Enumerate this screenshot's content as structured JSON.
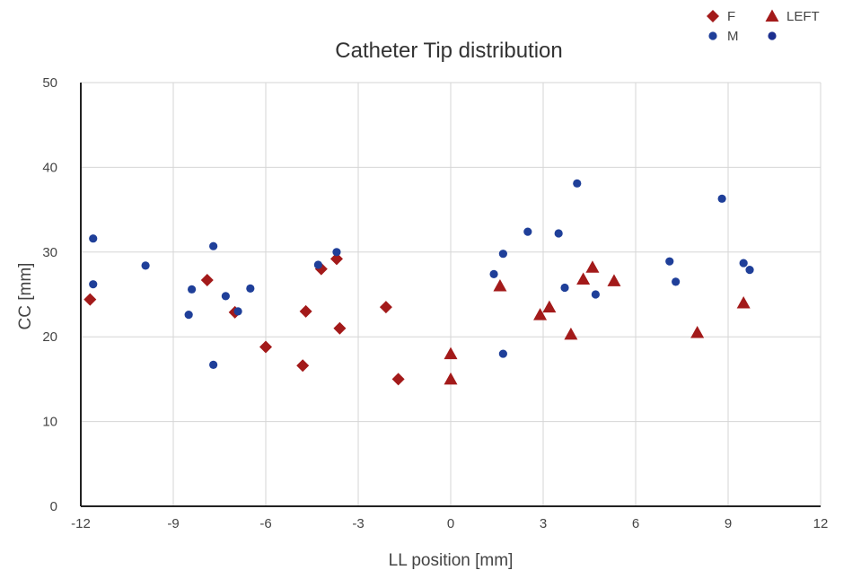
{
  "chart_data": {
    "type": "scatter",
    "title": "Catheter Tip distribution",
    "xlabel": "LL position [mm]",
    "ylabel": "CC [mm]",
    "xlim": [
      -12,
      12
    ],
    "ylim": [
      0,
      50
    ],
    "xticks": [
      -12,
      -9,
      -6,
      -3,
      0,
      3,
      6,
      9,
      12
    ],
    "yticks": [
      0,
      10,
      20,
      30,
      40,
      50
    ],
    "grid": true,
    "legend_position": "top-right",
    "legend": [
      {
        "label": "F",
        "marker": "diamond",
        "color": "#a31a1a"
      },
      {
        "label": "LEFT",
        "marker": "triangle",
        "color": "#a31a1a"
      },
      {
        "label": "M",
        "marker": "circle",
        "color": "#1f3f99"
      },
      {
        "label": "",
        "marker": "circle",
        "color": "#1c2f8f"
      }
    ],
    "series": [
      {
        "marker": "diamond",
        "color": "#a31a1a",
        "points": [
          [
            -11.7,
            24.4
          ],
          [
            -7.9,
            26.7
          ],
          [
            -7.0,
            22.9
          ],
          [
            -6.0,
            18.8
          ],
          [
            -4.8,
            16.6
          ],
          [
            -4.7,
            23.0
          ],
          [
            -4.2,
            28.0
          ],
          [
            -3.7,
            29.2
          ],
          [
            -3.6,
            21.0
          ],
          [
            -2.1,
            23.5
          ],
          [
            -1.7,
            15.0
          ]
        ]
      },
      {
        "marker": "triangle",
        "color": "#a31a1a",
        "points": [
          [
            0.0,
            18.0
          ],
          [
            0.0,
            15.0
          ],
          [
            1.6,
            26.0
          ],
          [
            2.9,
            22.6
          ],
          [
            3.2,
            23.5
          ],
          [
            3.9,
            20.3
          ],
          [
            4.3,
            26.8
          ],
          [
            4.6,
            28.2
          ],
          [
            5.3,
            26.6
          ],
          [
            8.0,
            20.5
          ],
          [
            9.5,
            24.0
          ]
        ]
      },
      {
        "marker": "circle",
        "color": "#1f3f99",
        "points": [
          [
            -11.6,
            31.6
          ],
          [
            -11.6,
            26.2
          ],
          [
            -9.9,
            28.4
          ],
          [
            -8.5,
            22.6
          ],
          [
            -8.4,
            25.6
          ],
          [
            -7.7,
            30.7
          ],
          [
            -7.7,
            16.7
          ],
          [
            -7.3,
            24.8
          ],
          [
            -6.9,
            23.0
          ],
          [
            -6.5,
            25.7
          ],
          [
            -4.3,
            28.5
          ],
          [
            -3.7,
            30.0
          ],
          [
            1.4,
            27.4
          ],
          [
            1.7,
            29.8
          ],
          [
            1.7,
            18.0
          ],
          [
            2.5,
            32.4
          ],
          [
            3.5,
            32.2
          ],
          [
            3.7,
            25.8
          ],
          [
            4.1,
            38.1
          ],
          [
            4.7,
            25.0
          ],
          [
            7.1,
            28.9
          ],
          [
            7.3,
            26.5
          ],
          [
            8.8,
            36.3
          ],
          [
            9.5,
            28.7
          ],
          [
            9.7,
            27.9
          ]
        ]
      }
    ]
  }
}
